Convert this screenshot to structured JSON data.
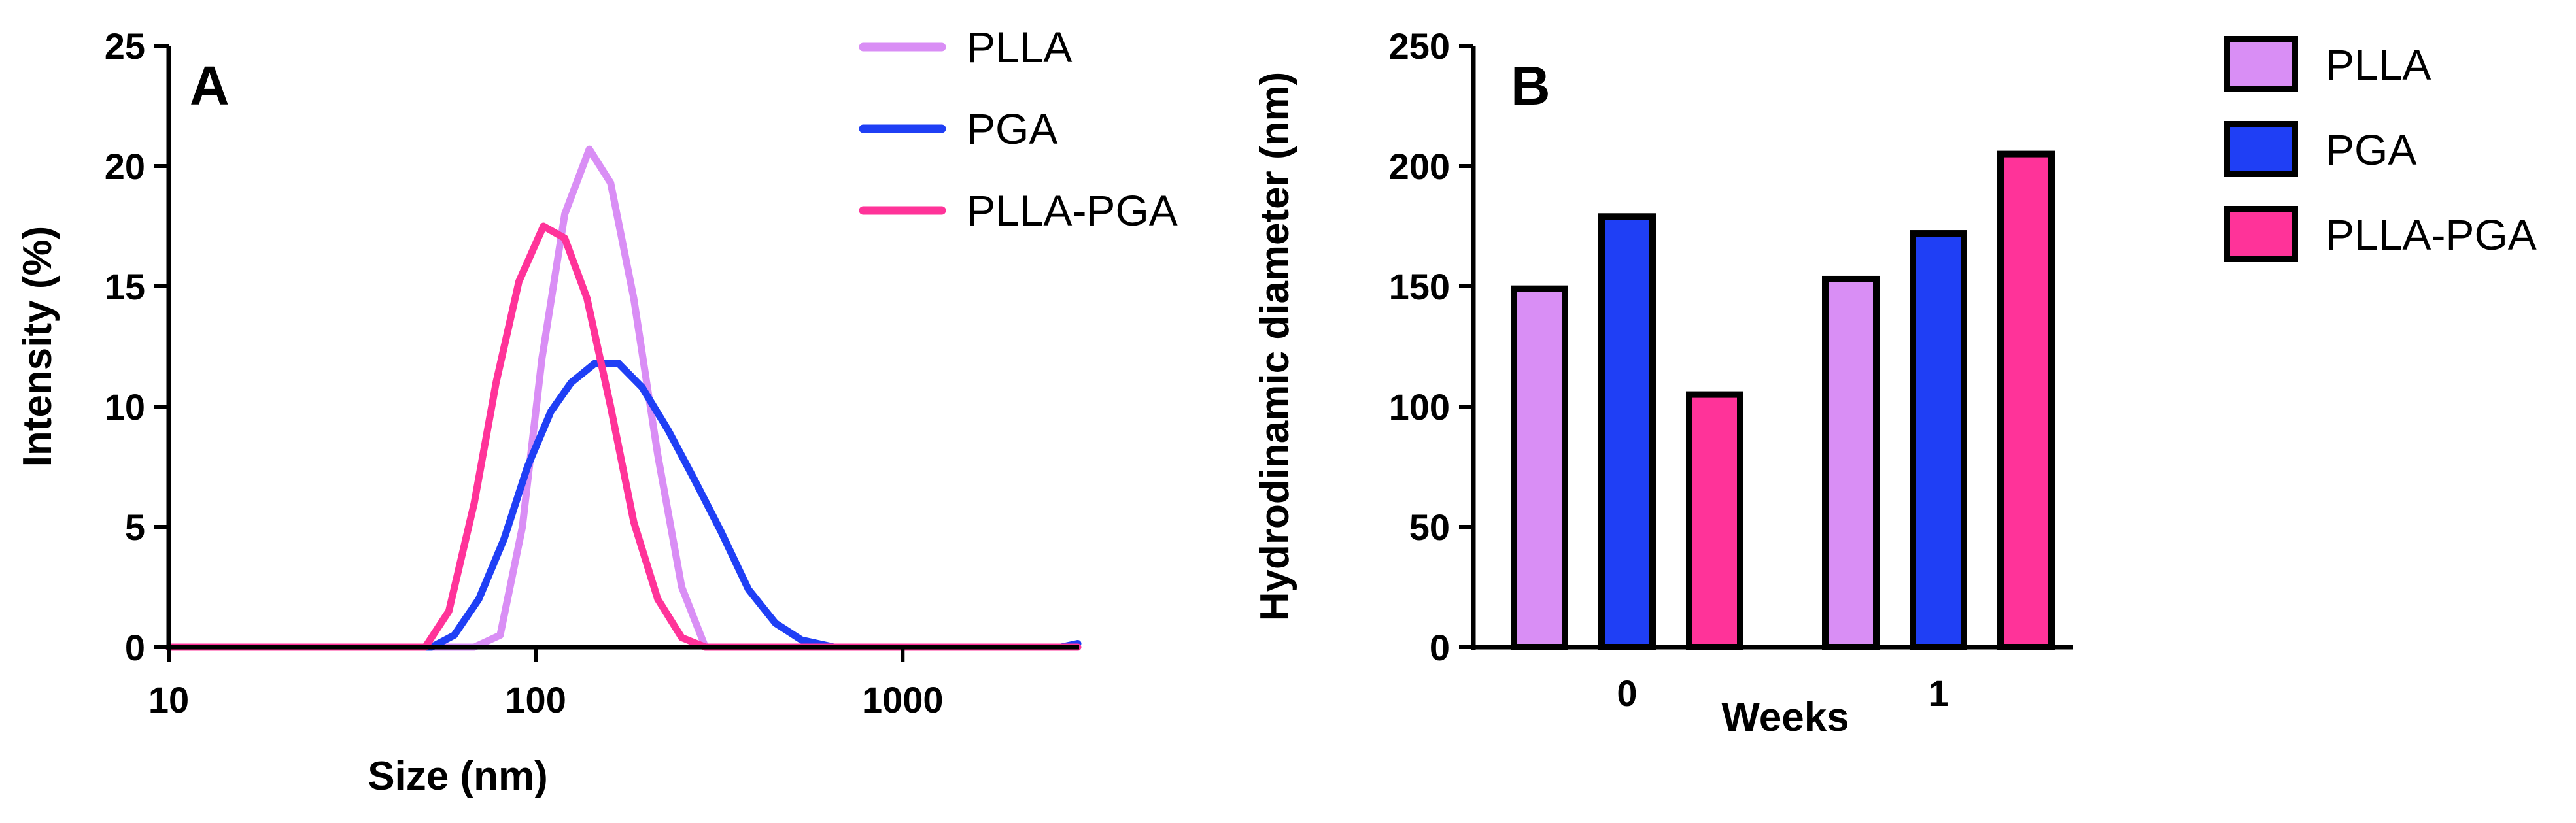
{
  "chart_data": [
    {
      "panel": "A",
      "type": "line",
      "xlabel": "Size (nm)",
      "ylabel": "Intensity (%)",
      "xscale": "log",
      "xlim": [
        10,
        3000
      ],
      "ylim": [
        0,
        25
      ],
      "xticks": [
        10,
        100,
        1000
      ],
      "xtick_labels": [
        "10",
        "100",
        "1000"
      ],
      "yticks": [
        0,
        5,
        10,
        15,
        20,
        25
      ],
      "ytick_labels": [
        "0",
        "5",
        "10",
        "15",
        "20",
        "25"
      ],
      "legend_position": "top-right",
      "series": [
        {
          "name": "PLLA",
          "color": "#d98ef5",
          "points": [
            [
              10,
              0
            ],
            [
              68,
              0
            ],
            [
              80,
              0.5
            ],
            [
              92,
              5
            ],
            [
              104,
              12
            ],
            [
              120,
              18
            ],
            [
              140,
              20.7
            ],
            [
              160,
              19.3
            ],
            [
              185,
              14.5
            ],
            [
              215,
              8
            ],
            [
              250,
              2.5
            ],
            [
              290,
              0
            ],
            [
              400,
              0
            ],
            [
              1000,
              0
            ],
            [
              3000,
              0
            ]
          ]
        },
        {
          "name": "PGA",
          "color": "#1f3ff5",
          "points": [
            [
              10,
              0
            ],
            [
              52,
              0
            ],
            [
              60,
              0.5
            ],
            [
              70,
              2
            ],
            [
              82,
              4.5
            ],
            [
              95,
              7.5
            ],
            [
              110,
              9.8
            ],
            [
              125,
              11
            ],
            [
              145,
              11.8
            ],
            [
              168,
              11.8
            ],
            [
              195,
              10.8
            ],
            [
              230,
              9
            ],
            [
              270,
              7
            ],
            [
              320,
              4.8
            ],
            [
              380,
              2.4
            ],
            [
              450,
              1
            ],
            [
              530,
              0.3
            ],
            [
              650,
              0
            ],
            [
              1000,
              0
            ],
            [
              2700,
              0
            ],
            [
              3000,
              0.15
            ]
          ]
        },
        {
          "name": "PLLA-PGA",
          "color": "#ff3399",
          "points": [
            [
              10,
              0
            ],
            [
              50,
              0
            ],
            [
              58,
              1.5
            ],
            [
              68,
              6
            ],
            [
              78,
              11
            ],
            [
              90,
              15.2
            ],
            [
              105,
              17.5
            ],
            [
              120,
              17
            ],
            [
              138,
              14.5
            ],
            [
              160,
              10
            ],
            [
              185,
              5.2
            ],
            [
              215,
              2
            ],
            [
              250,
              0.4
            ],
            [
              290,
              0
            ],
            [
              1000,
              0
            ],
            [
              3000,
              0
            ]
          ]
        }
      ]
    },
    {
      "panel": "B",
      "type": "bar",
      "xlabel": "Weeks",
      "ylabel": "Hydrodinamic diameter (nm)",
      "categories": [
        "0",
        "1"
      ],
      "ylim": [
        0,
        250
      ],
      "yticks": [
        0,
        50,
        100,
        150,
        200,
        250
      ],
      "ytick_labels": [
        "0",
        "50",
        "100",
        "150",
        "200",
        "250"
      ],
      "legend_position": "top-right",
      "series": [
        {
          "name": "PLLA",
          "color": "#d98ef5",
          "values": [
            149,
            153
          ]
        },
        {
          "name": "PGA",
          "color": "#1f3ff5",
          "values": [
            179,
            172
          ]
        },
        {
          "name": "PLLA-PGA",
          "color": "#ff3399",
          "values": [
            105,
            205
          ]
        }
      ]
    }
  ]
}
